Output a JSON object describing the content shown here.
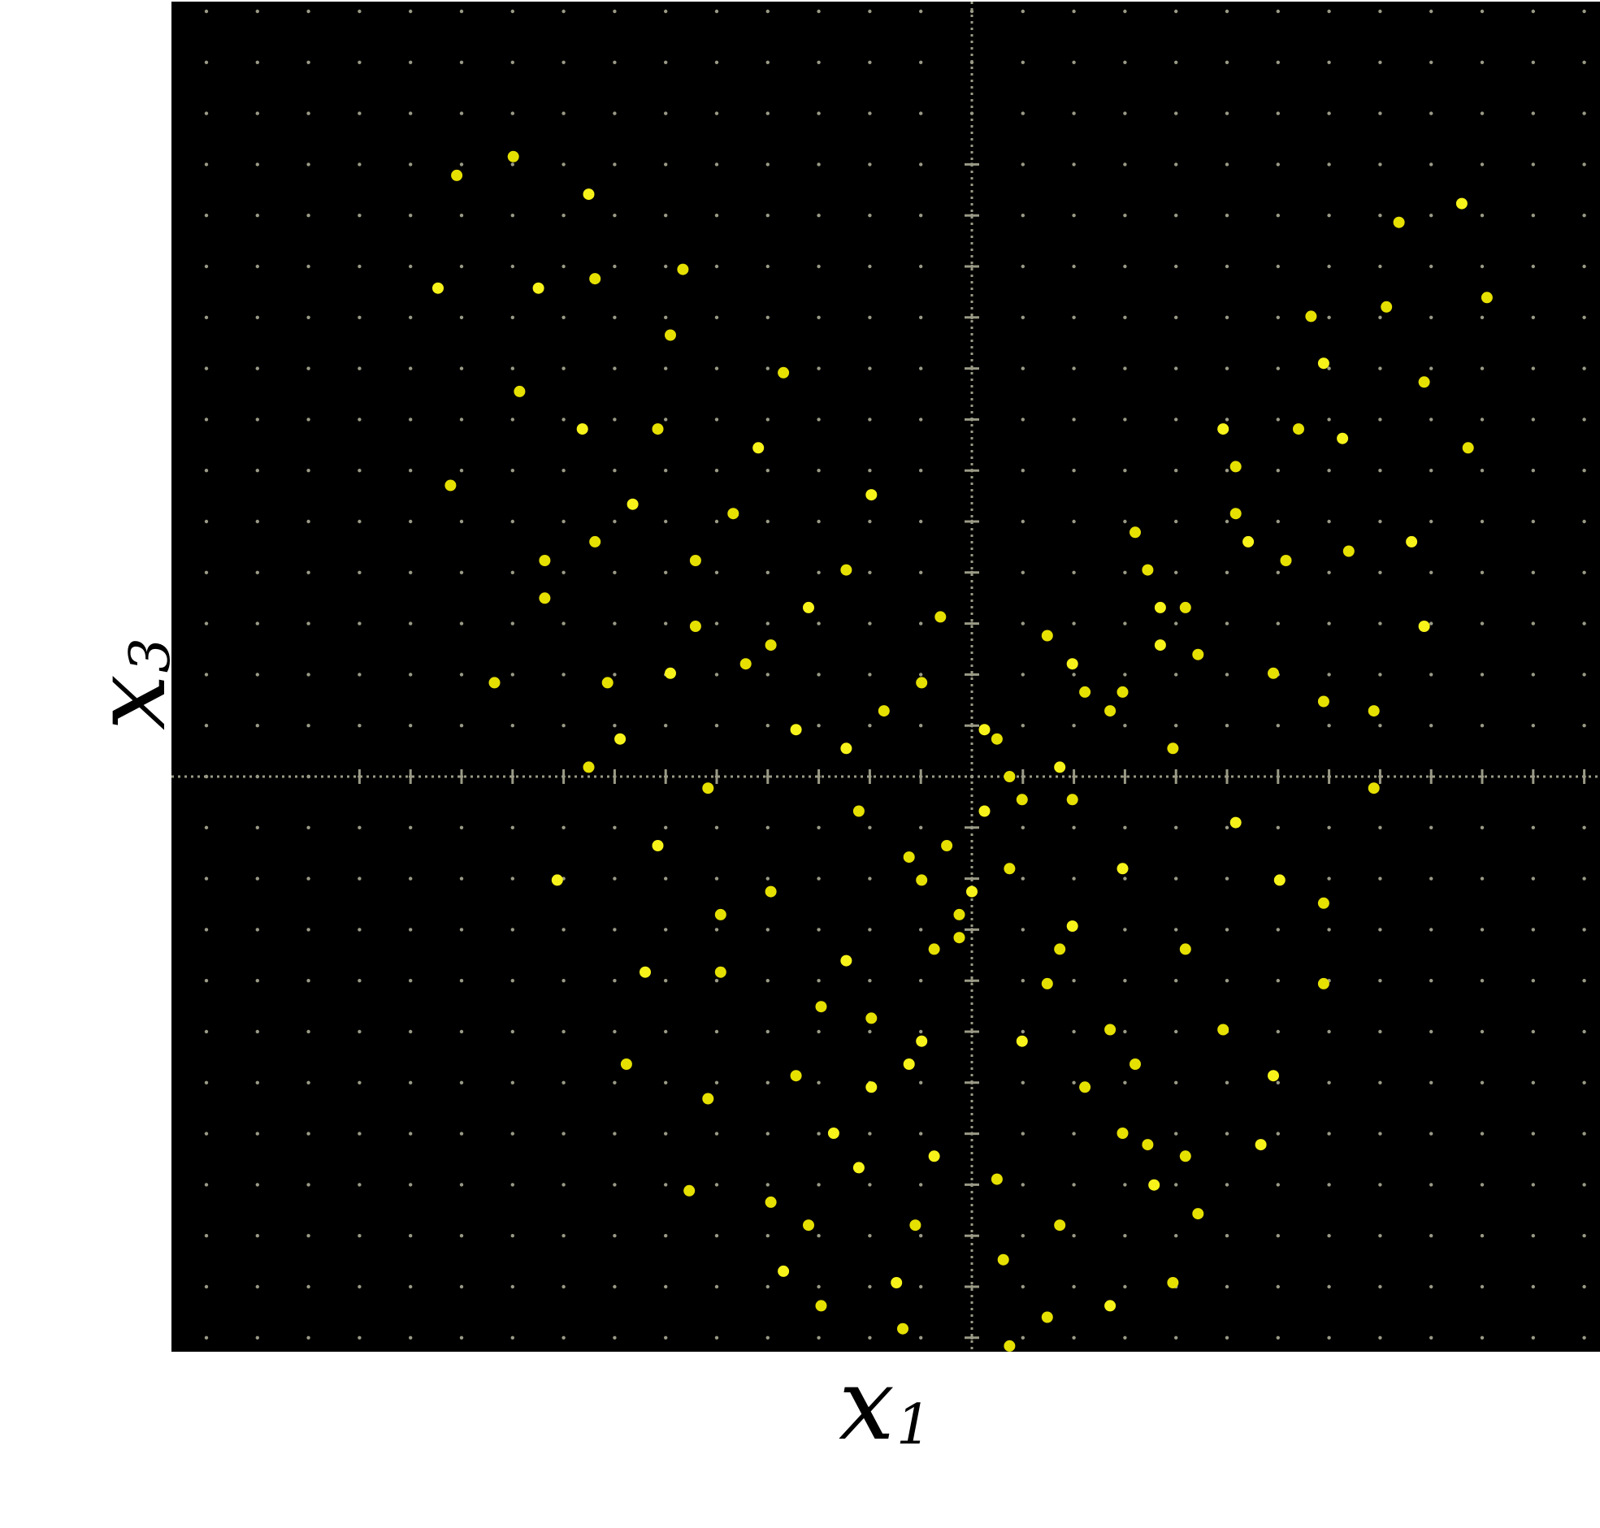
{
  "chart_data": {
    "type": "scatter",
    "title": "",
    "xlabel": {
      "symbol": "x",
      "subscript": "1"
    },
    "ylabel": {
      "symbol": "x",
      "subscript": "3"
    },
    "xlim": [
      -10,
      10
    ],
    "ylim": [
      -10,
      16.5
    ],
    "grid": true,
    "grid_style": "dotted oscilloscope graticule",
    "graticule_divisions": {
      "x": 10,
      "y": 13
    },
    "x_ticks": [],
    "y_ticks": [],
    "legend": "none",
    "colors": {
      "background": "#000000",
      "points": "#e6e000",
      "points_bright": "#f7f31a",
      "grid": "#9a9a86"
    },
    "series": [
      {
        "marker": "dot",
        "points": [
          [
            -3.0,
            -8.6
          ],
          [
            -4.5,
            -7.2
          ],
          [
            -5.5,
            -5.0
          ],
          [
            -6.6,
            -1.8
          ],
          [
            -7.6,
            2.0
          ],
          [
            -8.3,
            6.2
          ],
          [
            -8.5,
            10.4
          ],
          [
            -8.2,
            12.8
          ],
          [
            -7.3,
            13.2
          ],
          [
            -6.1,
            12.4
          ],
          [
            -4.6,
            10.8
          ],
          [
            -3.0,
            8.6
          ],
          [
            -1.6,
            6.0
          ],
          [
            -0.5,
            3.4
          ],
          [
            0.4,
            0.8
          ],
          [
            1.6,
            -2.6
          ],
          [
            2.6,
            -5.0
          ],
          [
            3.4,
            -6.6
          ],
          [
            2.2,
            -9.2
          ],
          [
            0.6,
            -9.9
          ],
          [
            -1.1,
            -9.6
          ],
          [
            -1.6,
            -5.4
          ],
          [
            -2.4,
            -4.0
          ],
          [
            -4.0,
            -2.4
          ],
          [
            -5.6,
            0.8
          ],
          [
            -6.8,
            4.6
          ],
          [
            -7.2,
            8.2
          ],
          [
            -6.9,
            10.4
          ],
          [
            -6.0,
            10.6
          ],
          [
            -4.8,
            9.4
          ],
          [
            -3.4,
            7.0
          ],
          [
            -2.0,
            4.4
          ],
          [
            -0.8,
            2.0
          ],
          [
            0.2,
            -0.6
          ],
          [
            1.2,
            -3.6
          ],
          [
            1.8,
            -5.4
          ],
          [
            2.9,
            -7.1
          ],
          [
            0.5,
            -8.4
          ],
          [
            -0.9,
            -7.8
          ],
          [
            -1.2,
            -8.8
          ],
          [
            -3.2,
            -7.4
          ],
          [
            -4.2,
            -5.6
          ],
          [
            -5.2,
            -3.4
          ],
          [
            -6.1,
            0.2
          ],
          [
            -6.8,
            3.8
          ],
          [
            -6.2,
            7.4
          ],
          [
            -5.0,
            7.4
          ],
          [
            -3.8,
            5.6
          ],
          [
            -2.6,
            3.6
          ],
          [
            -1.4,
            1.4
          ],
          [
            -0.4,
            -1.2
          ],
          [
            0.8,
            -4.6
          ],
          [
            2.4,
            -6.2
          ],
          [
            -0.6,
            -3.0
          ],
          [
            -1.0,
            -5.0
          ],
          [
            -2.8,
            -5.2
          ],
          [
            -4.0,
            -3.4
          ],
          [
            -5.0,
            -1.2
          ],
          [
            -5.8,
            2.0
          ],
          [
            -6.0,
            5.0
          ],
          [
            -5.4,
            5.8
          ],
          [
            -4.4,
            4.6
          ],
          [
            -3.2,
            2.8
          ],
          [
            -2.0,
            0.6
          ],
          [
            -1.0,
            -1.4
          ],
          [
            -0.2,
            -2.8
          ],
          [
            -2.0,
            -3.2
          ],
          [
            -3.2,
            -2.0
          ],
          [
            -4.2,
            -0.2
          ],
          [
            -4.8,
            2.2
          ],
          [
            -4.4,
            3.2
          ],
          [
            -3.6,
            2.4
          ],
          [
            -2.8,
            1.0
          ],
          [
            -1.8,
            -0.6
          ],
          [
            3.2,
            -8.8
          ],
          [
            4.6,
            -6.4
          ],
          [
            5.6,
            -3.6
          ],
          [
            6.4,
            -0.2
          ],
          [
            7.2,
            3.2
          ],
          [
            7.9,
            7.0
          ],
          [
            8.2,
            10.2
          ],
          [
            7.8,
            12.2
          ],
          [
            6.8,
            11.8
          ],
          [
            5.4,
            9.8
          ],
          [
            4.0,
            7.4
          ],
          [
            2.6,
            5.2
          ],
          [
            1.2,
            3.0
          ],
          [
            0.2,
            1.0
          ],
          [
            -0.8,
            -1.8
          ],
          [
            -1.6,
            -4.2
          ],
          [
            -2.2,
            -6.2
          ],
          [
            -2.6,
            -7.8
          ],
          [
            3.6,
            -7.6
          ],
          [
            4.8,
            -5.2
          ],
          [
            5.6,
            -2.2
          ],
          [
            6.4,
            1.4
          ],
          [
            7.0,
            5.0
          ],
          [
            7.2,
            8.4
          ],
          [
            6.6,
            10.0
          ],
          [
            5.6,
            8.8
          ],
          [
            4.2,
            6.6
          ],
          [
            2.8,
            4.4
          ],
          [
            1.6,
            2.4
          ],
          [
            0.6,
            0.0
          ],
          [
            -0.2,
            -2.4
          ],
          [
            -0.8,
            -4.6
          ],
          [
            2.8,
            -6.4
          ],
          [
            4.0,
            -4.4
          ],
          [
            4.9,
            -1.8
          ],
          [
            5.6,
            1.6
          ],
          [
            6.0,
            4.8
          ],
          [
            5.9,
            7.2
          ],
          [
            5.2,
            7.4
          ],
          [
            4.2,
            5.6
          ],
          [
            3.0,
            3.6
          ],
          [
            1.8,
            1.8
          ],
          [
            0.8,
            -0.4
          ],
          [
            0.0,
            -2.0
          ],
          [
            2.2,
            -4.4
          ],
          [
            3.4,
            -3.0
          ],
          [
            4.2,
            -0.8
          ],
          [
            4.8,
            2.2
          ],
          [
            5.0,
            4.6
          ],
          [
            4.4,
            5.0
          ],
          [
            3.4,
            3.6
          ],
          [
            2.4,
            1.8
          ],
          [
            1.4,
            0.2
          ],
          [
            0.6,
            -1.6
          ],
          [
            1.4,
            -3.0
          ],
          [
            2.4,
            -1.6
          ],
          [
            3.2,
            0.6
          ],
          [
            3.6,
            2.6
          ],
          [
            3.0,
            2.8
          ],
          [
            2.2,
            1.4
          ],
          [
            1.6,
            -0.4
          ],
          [
            -0.6,
            -6.6
          ],
          [
            0.4,
            -7.0
          ],
          [
            1.4,
            -7.8
          ],
          [
            -1.8,
            -6.8
          ],
          [
            -2.4,
            -9.2
          ],
          [
            1.2,
            -9.4
          ]
        ]
      }
    ]
  }
}
